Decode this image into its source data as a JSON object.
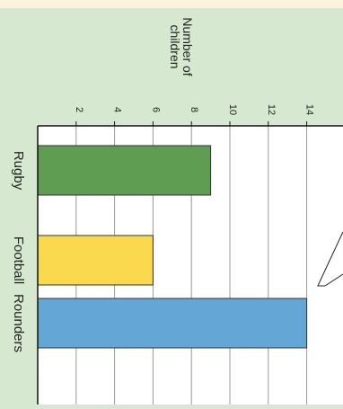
{
  "chart_data": {
    "type": "bar",
    "orientation": "rotated-90-clockwise",
    "categories": [
      "Rugby",
      "Football",
      "Rounders"
    ],
    "values": [
      9,
      6,
      14
    ],
    "bar_colors": [
      "#5f9e52",
      "#fbd94e",
      "#64a6d6"
    ],
    "ylabel": "Number of children",
    "ylabel_lines": [
      "Number of",
      "children"
    ],
    "yticks": [
      2,
      4,
      6,
      8,
      10,
      12,
      14
    ],
    "ylim": [
      0,
      15
    ],
    "grid": true
  },
  "colors": {
    "background": "#d6e8cf",
    "top_band": "#fbf3dc",
    "plot_background": "#ffffff",
    "grid": "#9a9a9a",
    "axis": "#111111"
  }
}
